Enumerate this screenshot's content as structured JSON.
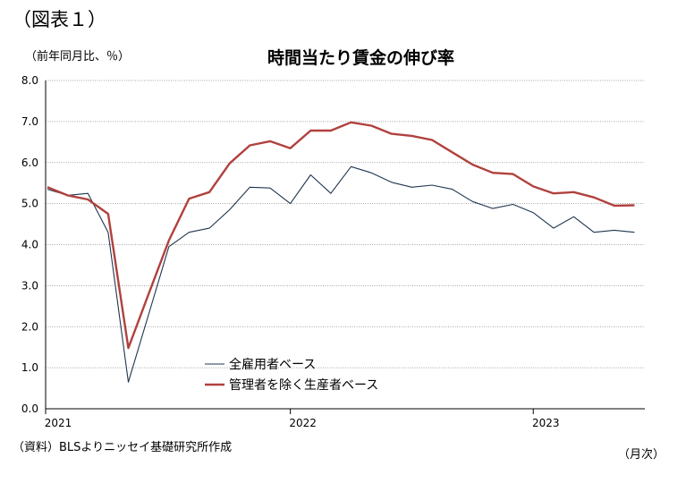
{
  "figure_label": "（図表１）",
  "unit_label": "（前年同月比、％）",
  "source_note": "（資料）BLSよりニッセイ基礎研究所作成",
  "x_unit": "（月次）",
  "colors": {
    "series_all": "#1f3550",
    "series_prod": "#b0413e",
    "grid": "#888888",
    "axis": "#000000"
  },
  "chart_data": {
    "type": "line",
    "title": "時間当たり賃金の伸び率",
    "ylabel": "（前年同月比、％）",
    "xlabel": "（月次）",
    "ylim": [
      0.0,
      8.0
    ],
    "y_ticks": [
      "0.0",
      "1.0",
      "2.0",
      "3.0",
      "4.0",
      "5.0",
      "6.0",
      "7.0",
      "8.0"
    ],
    "x_labels": [
      {
        "index": 0,
        "text": "2021"
      },
      {
        "index": 12,
        "text": "2022"
      },
      {
        "index": 24,
        "text": "2023"
      }
    ],
    "x": [
      "2021-01",
      "2021-02",
      "2021-03",
      "2021-04",
      "2021-05",
      "2021-06",
      "2021-07",
      "2021-08",
      "2021-09",
      "2021-10",
      "2021-11",
      "2021-12",
      "2022-01",
      "2022-02",
      "2022-03",
      "2022-04",
      "2022-05",
      "2022-06",
      "2022-07",
      "2022-08",
      "2022-09",
      "2022-10",
      "2022-11",
      "2022-12",
      "2023-01",
      "2023-02",
      "2023-03",
      "2023-04",
      "2023-05",
      "2023-06"
    ],
    "grid": true,
    "legend": "lower-left",
    "series": [
      {
        "name": "全雇用者ベース",
        "values": [
          5.35,
          5.2,
          5.25,
          4.3,
          0.65,
          2.3,
          3.95,
          4.3,
          4.4,
          4.85,
          5.4,
          5.38,
          5.0,
          5.7,
          5.25,
          5.9,
          5.75,
          5.52,
          5.4,
          5.45,
          5.35,
          5.05,
          4.88,
          4.98,
          4.78,
          4.4,
          4.68,
          4.3,
          4.35,
          4.3
        ]
      },
      {
        "name": "管理者を除く生産者ベース",
        "values": [
          5.4,
          5.2,
          5.1,
          4.75,
          1.48,
          2.8,
          4.1,
          5.12,
          5.28,
          5.98,
          6.42,
          6.52,
          6.35,
          6.78,
          6.78,
          6.98,
          6.9,
          6.7,
          6.65,
          6.55,
          6.25,
          5.95,
          5.75,
          5.72,
          5.42,
          5.25,
          5.28,
          5.15,
          4.95,
          4.96
        ]
      }
    ]
  }
}
